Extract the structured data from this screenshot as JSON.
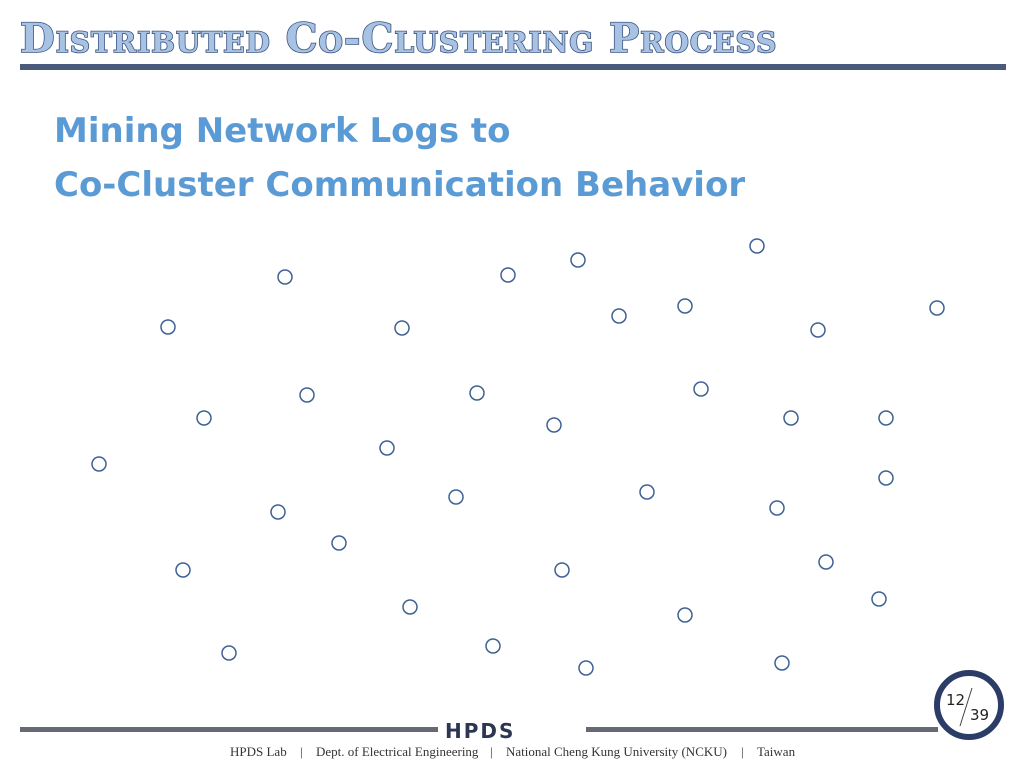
{
  "header": {
    "title": "Distributed Co-Clustering Process"
  },
  "subtitle": [
    "Mining Network Logs to",
    "Co-Cluster Communication Behavior"
  ],
  "page": {
    "current": "12",
    "total": "39"
  },
  "logo": "HPDS",
  "footer": [
    "HPDS Lab",
    "Dept. of Electrical Engineering",
    "National Cheng Kung University (NCKU)",
    "Taiwan"
  ]
}
